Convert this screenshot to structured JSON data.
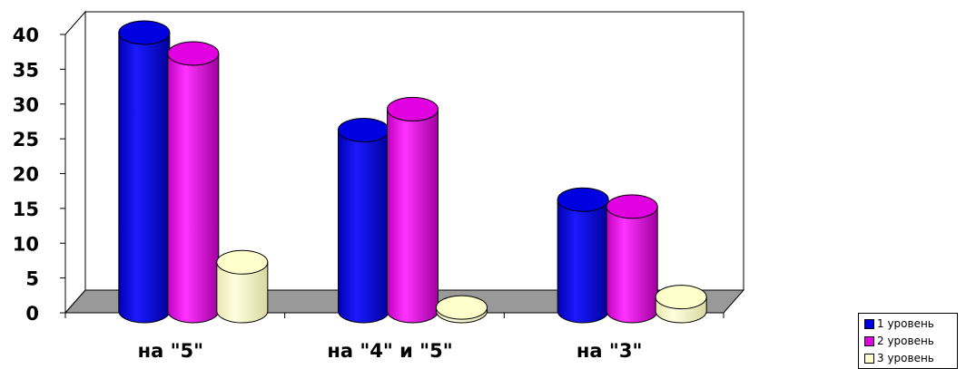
{
  "chart_data": {
    "type": "bar",
    "style": "3d-cylinder",
    "categories": [
      "на \"5\"",
      "на \"4\" и \"5\"",
      "на \"3\""
    ],
    "series": [
      {
        "name": "1 уровень",
        "values": [
          40,
          26,
          16
        ],
        "color": "#0000e0"
      },
      {
        "name": "2 уровень",
        "values": [
          37,
          29,
          15
        ],
        "color": "#e000e0"
      },
      {
        "name": "3 уровень",
        "values": [
          7,
          0.5,
          2
        ],
        "color": "#ffffcc"
      }
    ],
    "yticks": [
      "0",
      "5",
      "10",
      "15",
      "20",
      "25",
      "30",
      "35",
      "40"
    ],
    "ylim": [
      0,
      40
    ],
    "grid": false,
    "legend": "bottom-right",
    "floor_color": "#999999",
    "wall_color": "#ffffff"
  }
}
